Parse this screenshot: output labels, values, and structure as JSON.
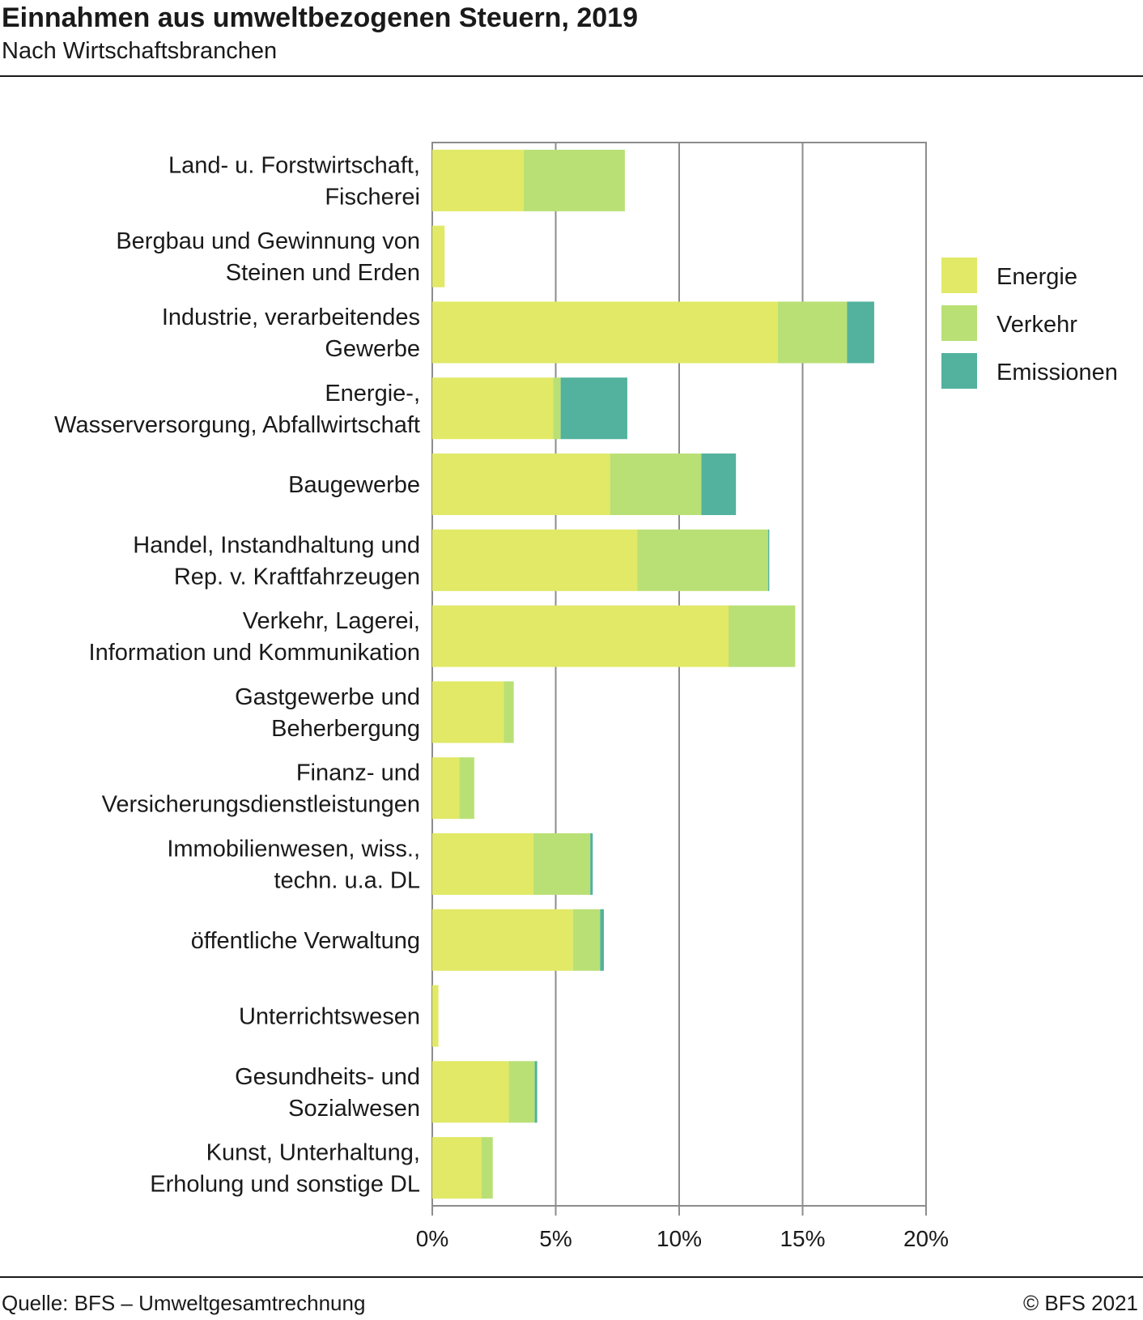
{
  "header": {
    "title": "Einnahmen aus umweltbezogenen Steuern, 2019",
    "subtitle": "Nach Wirtschaftsbranchen"
  },
  "footer": {
    "source": "Quelle: BFS – Umweltgesamtrechnung",
    "copyright": "© BFS 2021"
  },
  "colors": {
    "energie": "#e1e966",
    "verkehr": "#b9e075",
    "emissionen": "#52b29e",
    "grid": "#8c8c8c"
  },
  "chart_data": {
    "type": "bar",
    "orientation": "horizontal",
    "stacked": true,
    "xlim": [
      0,
      20
    ],
    "ticks": [
      0,
      5,
      10,
      15,
      20
    ],
    "tick_labels": [
      "0%",
      "5%",
      "10%",
      "15%",
      "20%"
    ],
    "grid": true,
    "legend": {
      "position": "right",
      "entries": [
        "Energie",
        "Verkehr",
        "Emissionen"
      ]
    },
    "categories": [
      [
        "Land- u. Forstwirtschaft,",
        "Fischerei"
      ],
      [
        "Bergbau und Gewinnung von",
        "Steinen und Erden"
      ],
      [
        "Industrie, verarbeitendes",
        "Gewerbe"
      ],
      [
        "Energie-,",
        "Wasserversorgung, Abfallwirtschaft"
      ],
      [
        "Baugewerbe"
      ],
      [
        "Handel, Instandhaltung und",
        "Rep. v. Kraftfahrzeugen"
      ],
      [
        "Verkehr, Lagerei,",
        "Information und Kommunikation"
      ],
      [
        "Gastgewerbe und",
        "Beherbergung"
      ],
      [
        "Finanz- und",
        "Versicherungsdienstleistungen"
      ],
      [
        "Immobilienwesen, wiss.,",
        "techn. u.a. DL"
      ],
      [
        "öffentliche Verwaltung"
      ],
      [
        "Unterrichtswesen"
      ],
      [
        "Gesundheits- und",
        "Sozialwesen"
      ],
      [
        "Kunst, Unterhaltung,",
        "Erholung und sonstige DL"
      ]
    ],
    "series": [
      {
        "name": "Energie",
        "values": [
          3.7,
          0.5,
          14.0,
          4.9,
          7.2,
          8.3,
          12.0,
          2.9,
          1.1,
          4.1,
          5.7,
          0.25,
          3.1,
          2.0
        ]
      },
      {
        "name": "Verkehr",
        "values": [
          4.1,
          0.0,
          2.8,
          0.3,
          3.7,
          5.3,
          2.7,
          0.4,
          0.6,
          2.3,
          1.1,
          0.0,
          1.05,
          0.45
        ]
      },
      {
        "name": "Emissionen",
        "values": [
          0.0,
          0.0,
          1.1,
          2.7,
          1.4,
          0.05,
          0.0,
          0.0,
          0.0,
          0.1,
          0.15,
          0.0,
          0.1,
          0.0
        ]
      }
    ]
  }
}
